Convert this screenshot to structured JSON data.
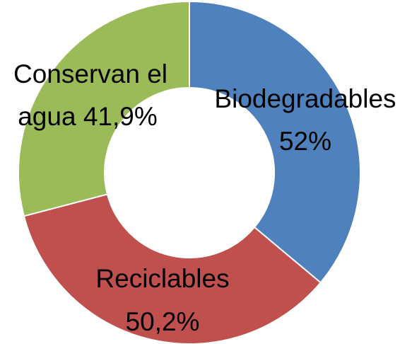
{
  "chart_data": {
    "type": "pie",
    "variant": "donut",
    "title": "",
    "legend": "none",
    "slices": [
      {
        "label": "Biodegradables",
        "value_label": "52%",
        "value": 52,
        "color": "#4F81BD"
      },
      {
        "label": "Reciclables",
        "value_label": "50,2%",
        "value": 50.2,
        "color": "#C0504D"
      },
      {
        "label": "Conservan el agua",
        "value_label": "41,9%",
        "value": 41.9,
        "color": "#9BBB59"
      }
    ]
  },
  "labels": {
    "biodegradables": {
      "line1": "Biodegradables",
      "line2": "52%"
    },
    "reciclables": {
      "line1": "Reciclables",
      "line2": "50,2%"
    },
    "conservan": {
      "line1": "Conservan el",
      "line2": "agua 41,9%"
    }
  }
}
